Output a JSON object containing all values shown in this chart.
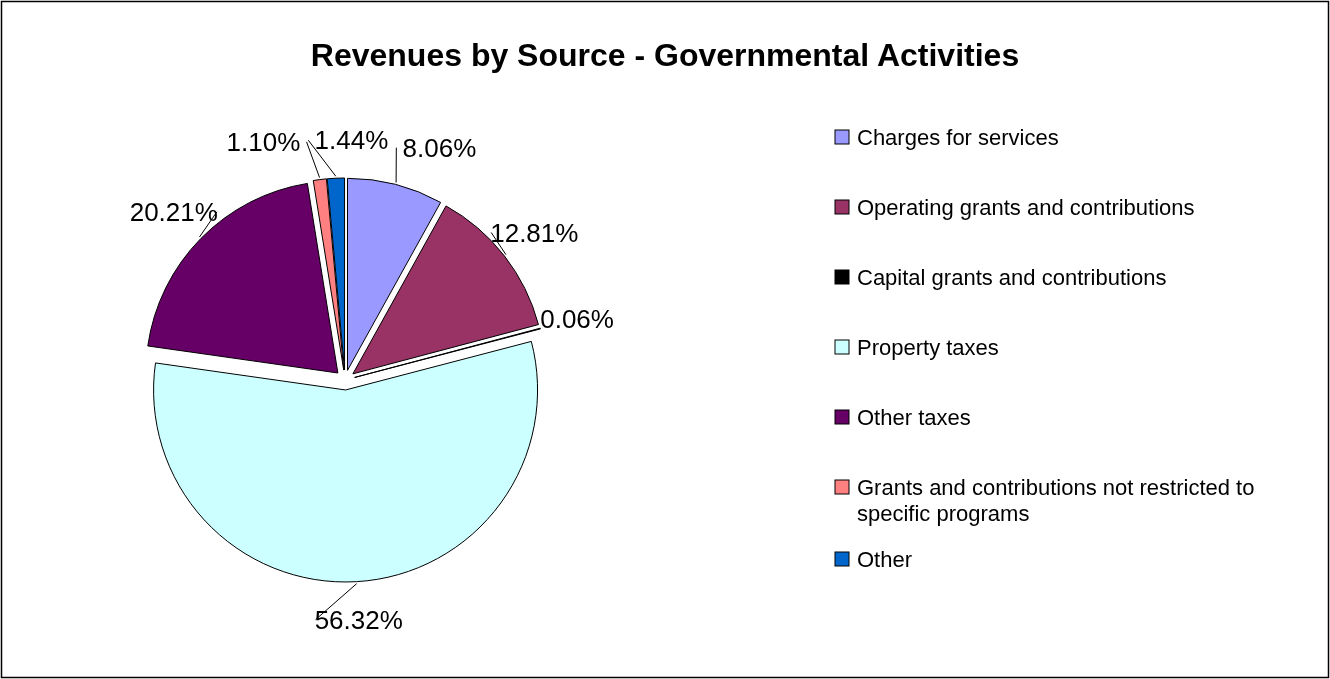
{
  "chart_data": {
    "type": "pie",
    "title": "Revenues by Source - Governmental Activities",
    "categories": [
      "Charges for services",
      "Operating grants and contributions",
      "Capital grants and contributions",
      "Property taxes",
      "Other taxes",
      "Grants and contributions not restricted to specific programs",
      "Other"
    ],
    "values": [
      8.06,
      12.81,
      0.06,
      56.32,
      20.21,
      1.1,
      1.44
    ],
    "colors": [
      "#9999ff",
      "#993366",
      "#000000",
      "#ccffff",
      "#660066",
      "#ff8080",
      "#0066cc"
    ],
    "value_labels": [
      "8.06%",
      "12.81%",
      "0.06%",
      "56.32%",
      "20.21%",
      "1.10%",
      "1.44%"
    ],
    "legend": "right"
  }
}
